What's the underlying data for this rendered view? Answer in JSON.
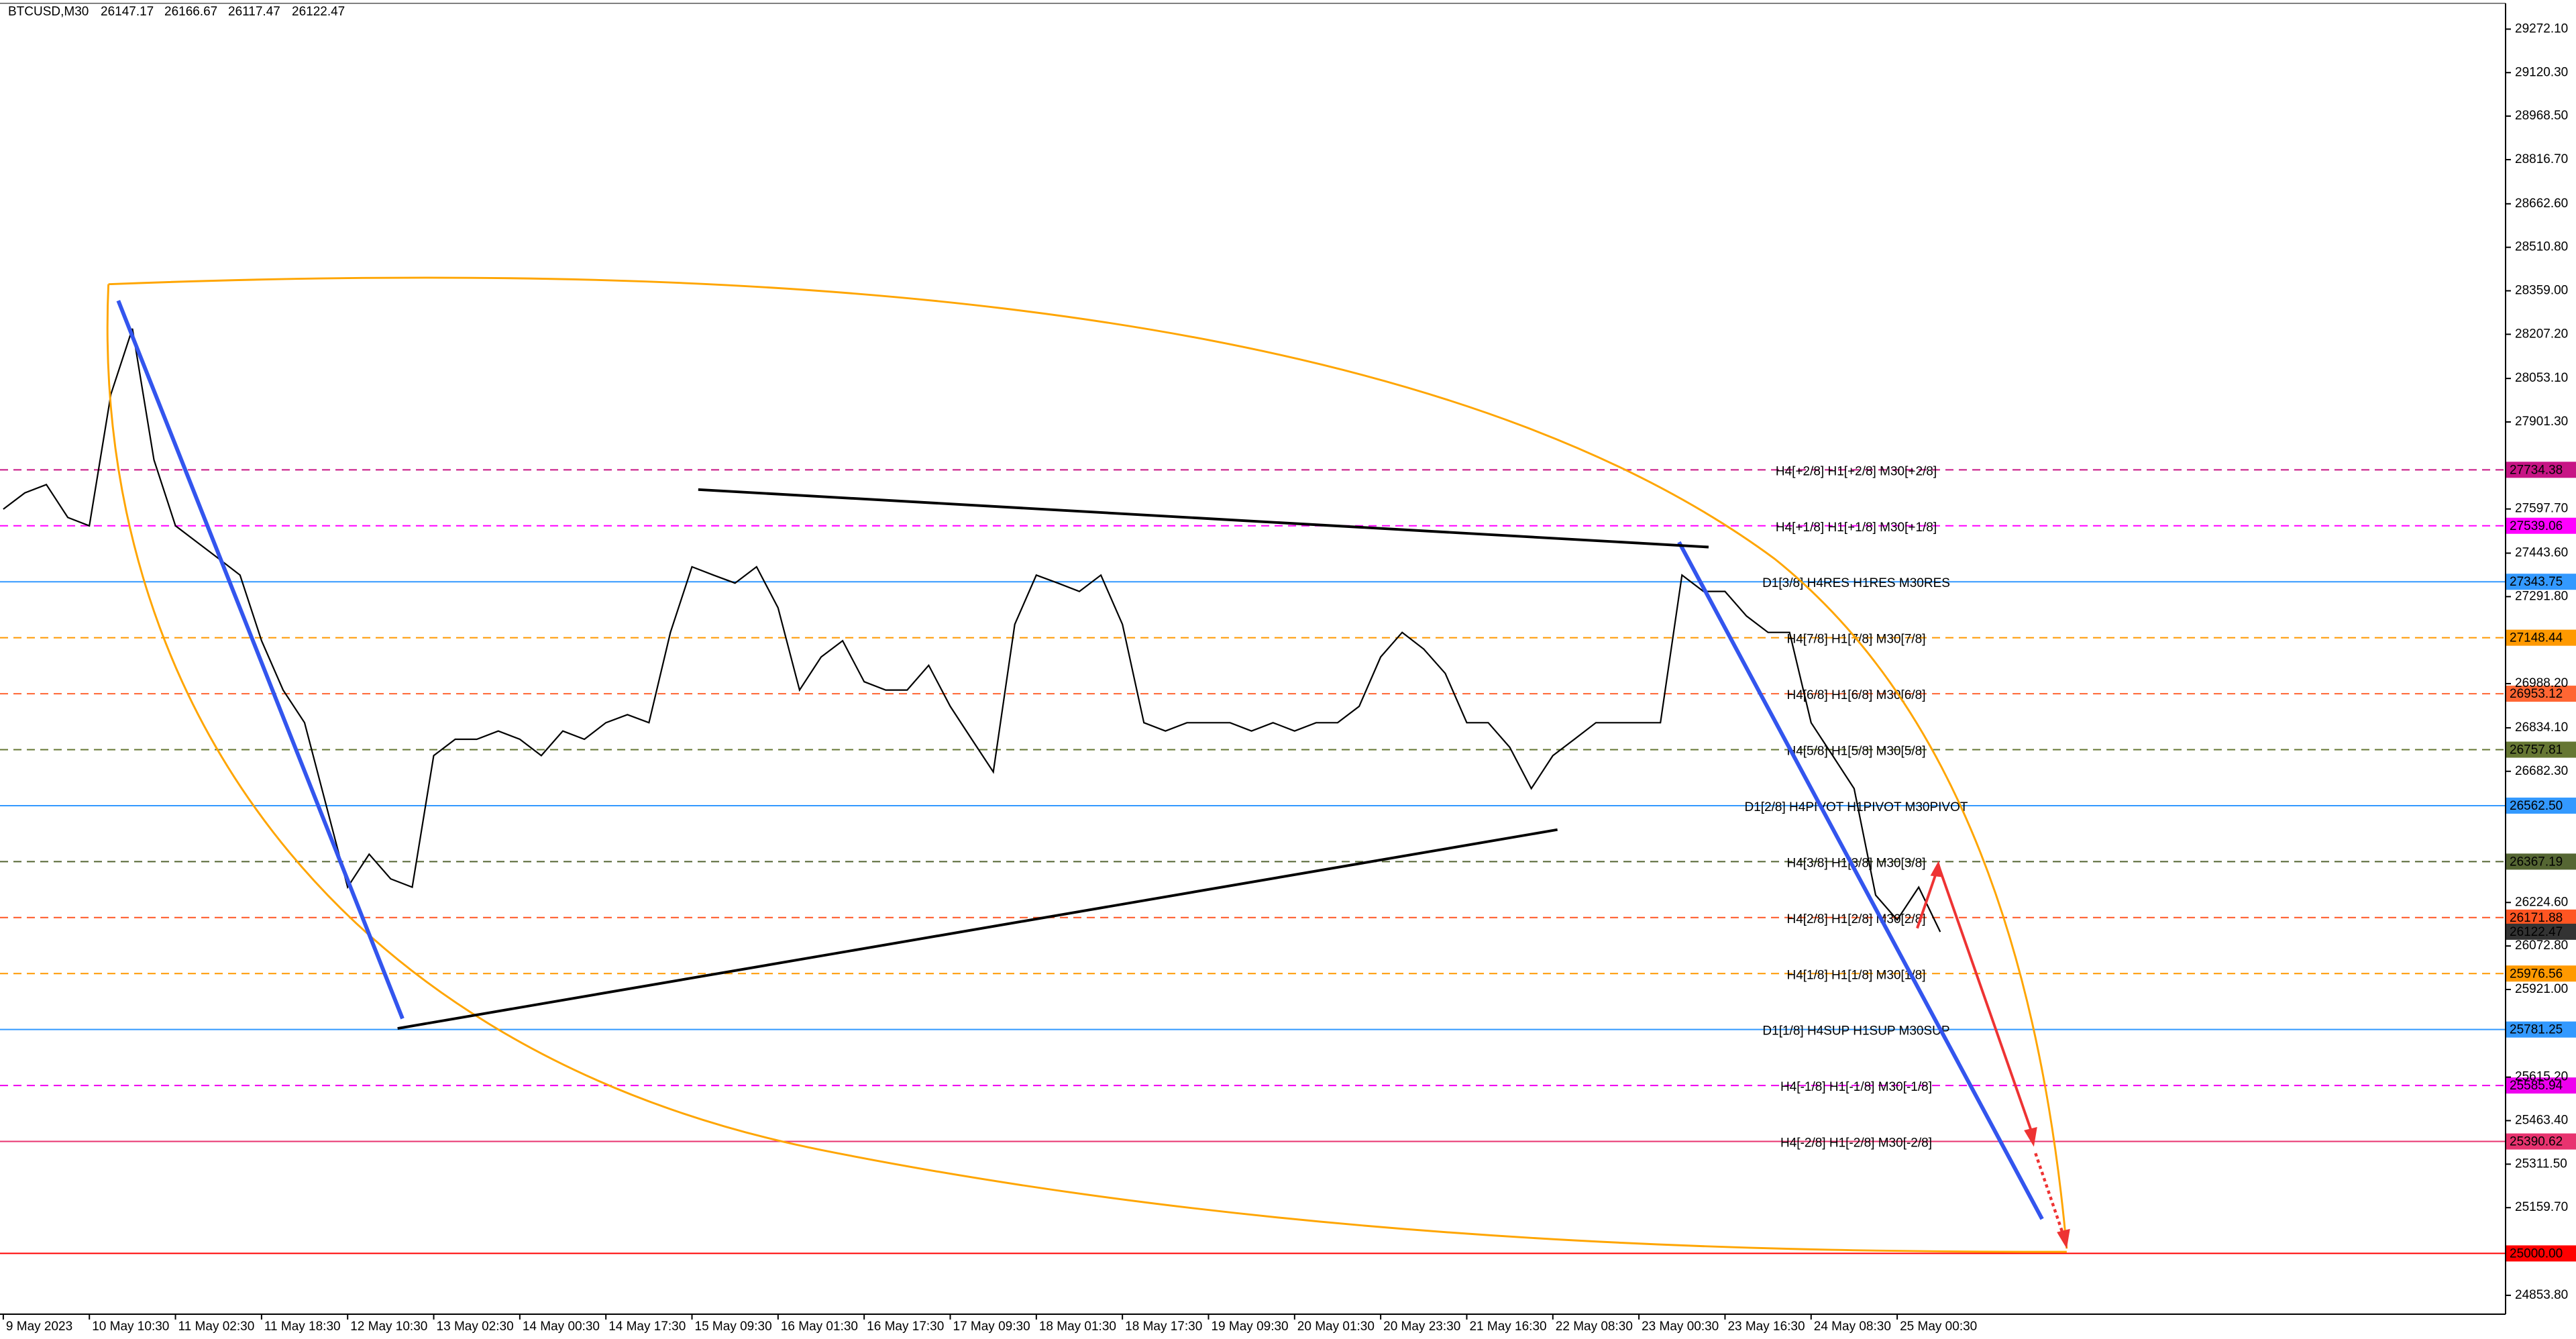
{
  "chart_data": {
    "type": "line",
    "header": {
      "symbol": "BTCUSD,M30",
      "open": "26147.17",
      "high": "26166.67",
      "low": "26117.47",
      "close": "26122.47"
    },
    "color": "#000000",
    "ylim": [
      24788,
      29362
    ],
    "yticks": [
      {
        "value": 29272.1,
        "label": "29272.10"
      },
      {
        "value": 29120.3,
        "label": "29120.30"
      },
      {
        "value": 28968.5,
        "label": "28968.50"
      },
      {
        "value": 28816.7,
        "label": "28816.70"
      },
      {
        "value": 28662.6,
        "label": "28662.60"
      },
      {
        "value": 28510.8,
        "label": "28510.80"
      },
      {
        "value": 28359,
        "label": "28359.00"
      },
      {
        "value": 28207.2,
        "label": "28207.20"
      },
      {
        "value": 28053.1,
        "label": "28053.10"
      },
      {
        "value": 27901.3,
        "label": "27901.30"
      },
      {
        "value": 27597.7,
        "label": "27597.70"
      },
      {
        "value": 27443.6,
        "label": "27443.60"
      },
      {
        "value": 27291.8,
        "label": "27291.80"
      },
      {
        "value": 26988.2,
        "label": "26988.20"
      },
      {
        "value": 26834.1,
        "label": "26834.10"
      },
      {
        "value": 26682.3,
        "label": "26682.30"
      },
      {
        "value": 26224.6,
        "label": "26224.60"
      },
      {
        "value": 26072.8,
        "label": "26072.80"
      },
      {
        "value": 25921,
        "label": "25921.00"
      },
      {
        "value": 25615.2,
        "label": "25615.20"
      },
      {
        "value": 25463.4,
        "label": "25463.40"
      },
      {
        "value": 25311.5,
        "label": "25311.50"
      },
      {
        "value": 25159.7,
        "label": "25159.70"
      },
      {
        "value": 24853.8,
        "label": "24853.80"
      }
    ],
    "categories": [
      "9 May 2023",
      null,
      null,
      null,
      "10 May 10:30",
      null,
      null,
      null,
      "11 May 02:30",
      null,
      null,
      null,
      "11 May 18:30",
      null,
      null,
      null,
      "12 May 10:30",
      null,
      null,
      null,
      "13 May 02:30",
      null,
      null,
      null,
      "14 May 00:30",
      null,
      null,
      null,
      "14 May 17:30",
      null,
      null,
      null,
      "15 May 09:30",
      null,
      null,
      null,
      "16 May 01:30",
      null,
      null,
      null,
      "16 May 17:30",
      null,
      null,
      null,
      "17 May 09:30",
      null,
      null,
      null,
      "18 May 01:30",
      null,
      null,
      null,
      "18 May 17:30",
      null,
      null,
      null,
      "19 May 09:30",
      null,
      null,
      null,
      "20 May 01:30",
      null,
      null,
      null,
      "20 May 23:30",
      null,
      null,
      null,
      "21 May 16:30",
      null,
      null,
      null,
      "22 May 08:30",
      null,
      null,
      null,
      "23 May 00:30",
      null,
      null,
      null,
      "23 May 16:30",
      null,
      null,
      null,
      "24 May 08:30",
      null,
      null,
      null,
      "25 May 00:30",
      null,
      null
    ],
    "values": [
      27597,
      27654,
      27683,
      27568,
      27539,
      27998,
      28227,
      27769,
      27539,
      27482,
      27425,
      27367,
      27138,
      26966,
      26852,
      26565,
      26278,
      26393,
      26307,
      26278,
      26737,
      26794,
      26794,
      26823,
      26794,
      26737,
      26823,
      26794,
      26852,
      26880,
      26852,
      27167,
      27396,
      27367,
      27339,
      27396,
      27253,
      26966,
      27081,
      27138,
      26995,
      26966,
      26966,
      27052,
      26909,
      26794,
      26680,
      27195,
      27367,
      27339,
      27310,
      27367,
      27195,
      26852,
      26823,
      26852,
      26852,
      26852,
      26823,
      26852,
      26823,
      26852,
      26852,
      26909,
      27081,
      27167,
      27109,
      27024,
      26852,
      26852,
      26766,
      26622,
      26737,
      26794,
      26852,
      26852,
      26852,
      26852,
      27367,
      27310,
      27310,
      27224,
      27167,
      27167,
      26852,
      26737,
      26622,
      26250,
      26164,
      26278,
      26122
    ],
    "levels": [
      {
        "value": 27734.38,
        "value_label": "27734.38",
        "label": "H4[+2/8] H1[+2/8] M30[+2/8]",
        "color": "#c71585",
        "dashed": true
      },
      {
        "value": 27539.06,
        "value_label": "27539.06",
        "label": "H4[+1/8] H1[+1/8] M30[+1/8]",
        "color": "#ff00ff",
        "dashed": true
      },
      {
        "value": 27343.75,
        "value_label": "27343.75",
        "label": "D1[3/8] H4RES H1RES M30RES",
        "color": "#3399ff",
        "dashed": false
      },
      {
        "value": 27148.44,
        "value_label": "27148.44",
        "label": "H4[7/8] H1[7/8] M30[7/8]",
        "color": "#ff9900",
        "dashed": true
      },
      {
        "value": 26953.12,
        "value_label": "26953.12",
        "label": "H4[6/8] H1[6/8] M30[6/8]",
        "color": "#ff6633",
        "dashed": true
      },
      {
        "value": 26757.81,
        "value_label": "26757.81",
        "label": "H4[5/8] H1[5/8] M30[5/8]",
        "color": "#667733",
        "dashed": true
      },
      {
        "value": 26562.5,
        "value_label": "26562.50",
        "label": "D1[2/8] H4PIVOT H1PIVOT M30PIVOT",
        "color": "#3399ff",
        "dashed": false
      },
      {
        "value": 26367.19,
        "value_label": "26367.19",
        "label": "H4[3/8] H1[3/8] M30[3/8]",
        "color": "#556633",
        "dashed": true
      },
      {
        "value": 26171.88,
        "value_label": "26171.88",
        "label": "H4[2/8] H1[2/8] M30[2/8]",
        "color": "#ff5522",
        "dashed": true
      },
      {
        "value": 25976.56,
        "value_label": "25976.56",
        "label": "H4[1/8] H1[1/8] M30[1/8]",
        "color": "#ff9900",
        "dashed": true
      },
      {
        "value": 25781.25,
        "value_label": "25781.25",
        "label": "D1[1/8] H4SUP H1SUP M30SUP",
        "color": "#3399ff",
        "dashed": false
      },
      {
        "value": 25585.94,
        "value_label": "25585.94",
        "label": "H4[-1/8] H1[-1/8] M30[-1/8]",
        "color": "#ee00ee",
        "dashed": true
      },
      {
        "value": 25390.62,
        "value_label": "25390.62",
        "label": "H4[-2/8] H1[-2/8] M30[-2/8]",
        "color": "#e8336f",
        "dashed": false
      },
      {
        "value": 25000,
        "value_label": "25000.00",
        "color": "#ff0000",
        "dashed": false
      }
    ]
  }
}
